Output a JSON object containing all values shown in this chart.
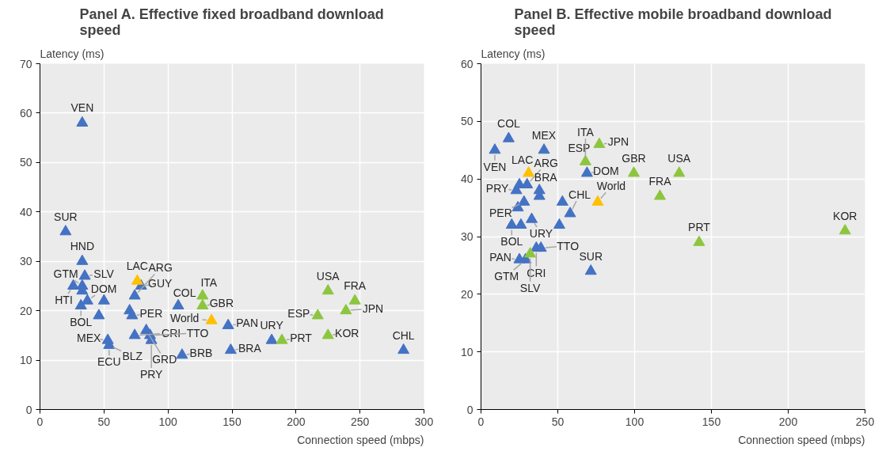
{
  "chart_data": [
    {
      "type": "scatter",
      "title": "Panel A. Effective fixed broadband download speed",
      "xlabel": "Connection speed (mbps)",
      "ylabel": "Latency (ms)",
      "marker": "triangle",
      "grid": true,
      "xlim": [
        0,
        300
      ],
      "ylim": [
        0,
        70
      ],
      "xticks": [
        0,
        50,
        100,
        150,
        200,
        250,
        300
      ],
      "yticks": [
        0,
        10,
        20,
        30,
        40,
        50,
        60,
        70
      ],
      "series": [
        {
          "color": "#4472c4",
          "x": [
            33,
            20,
            33,
            35,
            33,
            33,
            26,
            37,
            32,
            50,
            46,
            70,
            72,
            53,
            54,
            74,
            83,
            86,
            87,
            111,
            79,
            74,
            108,
            147,
            149,
            181,
            284
          ],
          "values": [
            58,
            36,
            30,
            27,
            25,
            24,
            25,
            22,
            21,
            22,
            19,
            20,
            19,
            14,
            13,
            15,
            16,
            15,
            14,
            11,
            25,
            23,
            21,
            17,
            12,
            14,
            12
          ]
        },
        {
          "color": "#8cc63f",
          "x": [
            127,
            127,
            189,
            217,
            225,
            225,
            239,
            246
          ],
          "values": [
            23,
            21,
            14,
            19,
            24,
            15,
            20,
            22
          ]
        },
        {
          "color": "#ffc000",
          "x": [
            76,
            134
          ],
          "values": [
            26,
            18
          ]
        }
      ],
      "annotations": [
        {
          "text": "VEN",
          "x": 33,
          "y": 58
        },
        {
          "text": "SUR",
          "x": 20,
          "y": 36
        },
        {
          "text": "HND",
          "x": 33,
          "y": 30
        },
        {
          "text": "SLV",
          "x": 35,
          "y": 27
        },
        {
          "text": "GTM",
          "x": 33,
          "y": 25
        },
        {
          "text": "HTI",
          "x": 26,
          "y": 25
        },
        {
          "text": "DOM",
          "x": 37,
          "y": 22
        },
        {
          "text": "BOL",
          "x": 32,
          "y": 21
        },
        {
          "text": "PER",
          "x": 72,
          "y": 19
        },
        {
          "text": "MEX",
          "x": 53,
          "y": 14
        },
        {
          "text": "ECU",
          "x": 54,
          "y": 13
        },
        {
          "text": "BLZ",
          "x": 54,
          "y": 13
        },
        {
          "text": "CRI",
          "x": 74,
          "y": 15
        },
        {
          "text": "GRD",
          "x": 83,
          "y": 16
        },
        {
          "text": "TTO",
          "x": 86,
          "y": 15
        },
        {
          "text": "PRY",
          "x": 87,
          "y": 14
        },
        {
          "text": "BRB",
          "x": 111,
          "y": 11
        },
        {
          "text": "LAC",
          "x": 76,
          "y": 26
        },
        {
          "text": "GUY",
          "x": 79,
          "y": 25
        },
        {
          "text": "ARG",
          "x": 74,
          "y": 23
        },
        {
          "text": "COL",
          "x": 108,
          "y": 21
        },
        {
          "text": "ITA",
          "x": 127,
          "y": 23
        },
        {
          "text": "GBR",
          "x": 127,
          "y": 21
        },
        {
          "text": "World",
          "x": 134,
          "y": 18
        },
        {
          "text": "PAN",
          "x": 147,
          "y": 17
        },
        {
          "text": "BRA",
          "x": 149,
          "y": 12
        },
        {
          "text": "URY",
          "x": 181,
          "y": 14
        },
        {
          "text": "PRT",
          "x": 189,
          "y": 14
        },
        {
          "text": "ESP",
          "x": 217,
          "y": 19
        },
        {
          "text": "USA",
          "x": 225,
          "y": 24
        },
        {
          "text": "KOR",
          "x": 225,
          "y": 15
        },
        {
          "text": "JPN",
          "x": 239,
          "y": 20
        },
        {
          "text": "FRA",
          "x": 246,
          "y": 22
        },
        {
          "text": "CHL",
          "x": 284,
          "y": 12
        }
      ]
    },
    {
      "type": "scatter",
      "title": "Panel B. Effective mobile broadband download speed",
      "xlabel": "Connection speed (mbps)",
      "ylabel": "Latency (ms)",
      "marker": "triangle",
      "grid": true,
      "xlim": [
        0,
        250
      ],
      "ylim": [
        0,
        60
      ],
      "xticks": [
        0,
        50,
        100,
        150,
        200,
        250
      ],
      "yticks": [
        0,
        10,
        20,
        30,
        40,
        50,
        60
      ],
      "series": [
        {
          "color": "#4472c4",
          "x": [
            9,
            18,
            41,
            30,
            23,
            25,
            38,
            38,
            28,
            24,
            53,
            20,
            26,
            33,
            58,
            51,
            69,
            36,
            39,
            25,
            29,
            71.5
          ],
          "values": [
            45,
            47,
            45,
            39,
            38,
            39,
            38,
            37,
            36,
            35,
            36,
            32,
            32,
            33,
            34,
            32,
            41,
            28,
            28,
            26,
            26,
            24
          ]
        },
        {
          "color": "#8cc63f",
          "x": [
            68,
            77,
            99.5,
            129,
            116.5,
            142,
            237,
            32
          ],
          "values": [
            43,
            46,
            41,
            41,
            37,
            29,
            31,
            27
          ]
        },
        {
          "color": "#ffc000",
          "x": [
            31,
            76
          ],
          "values": [
            41,
            36
          ]
        }
      ],
      "annotations": [
        {
          "text": "VEN",
          "x": 9,
          "y": 45
        },
        {
          "text": "COL",
          "x": 18,
          "y": 47
        },
        {
          "text": "MEX",
          "x": 41,
          "y": 45
        },
        {
          "text": "LAC",
          "x": 31,
          "y": 41
        },
        {
          "text": "ARG",
          "x": 30,
          "y": 39
        },
        {
          "text": "PRY",
          "x": 23,
          "y": 38
        },
        {
          "text": "BRA",
          "x": 38,
          "y": 38
        },
        {
          "text": "PER",
          "x": 28,
          "y": 36
        },
        {
          "text": "BOL",
          "x": 20,
          "y": 32
        },
        {
          "text": "URY",
          "x": 33,
          "y": 33
        },
        {
          "text": "CHL",
          "x": 58,
          "y": 34
        },
        {
          "text": "DOM",
          "x": 69,
          "y": 41
        },
        {
          "text": "ESP",
          "x": 68,
          "y": 43
        },
        {
          "text": "ITA",
          "x": 68,
          "y": 43
        },
        {
          "text": "JPN",
          "x": 77,
          "y": 46
        },
        {
          "text": "World",
          "x": 76,
          "y": 36
        },
        {
          "text": "CRI",
          "x": 36,
          "y": 28
        },
        {
          "text": "TTO",
          "x": 39,
          "y": 28
        },
        {
          "text": "SLV",
          "x": 32,
          "y": 27
        },
        {
          "text": "PAN",
          "x": 25,
          "y": 26
        },
        {
          "text": "GTM",
          "x": 29,
          "y": 26
        },
        {
          "text": "SUR",
          "x": 71.5,
          "y": 24
        },
        {
          "text": "GBR",
          "x": 99.5,
          "y": 41
        },
        {
          "text": "USA",
          "x": 129,
          "y": 41
        },
        {
          "text": "FRA",
          "x": 116.5,
          "y": 37
        },
        {
          "text": "PRT",
          "x": 142,
          "y": 29
        },
        {
          "text": "KOR",
          "x": 237,
          "y": 31
        }
      ]
    }
  ]
}
